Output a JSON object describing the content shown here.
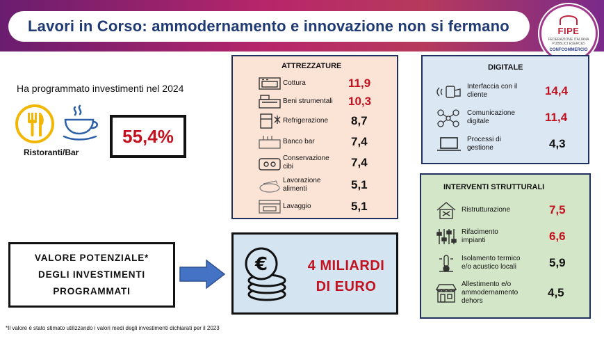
{
  "header": {
    "title": "Lavori in Corso: ammodernamento e innovazione non si fermano",
    "logo": {
      "name": "FIPE",
      "subtitle": "FEDERAZIONE ITALIANA PUBBLICI ESERCIZI",
      "parent": "CONFCOMMERCIO"
    }
  },
  "left": {
    "plan_text": "Ha programmato investimenti nel 2024",
    "segment": "Ristoranti/Bar",
    "percentage": "55,4%",
    "icons": [
      "fork-knife-icon",
      "coffee-cup-icon"
    ]
  },
  "attrezzature": {
    "title": "ATTREZZATURE",
    "items": [
      {
        "label": "Cottura",
        "value": "11,9",
        "icon": "oven-icon",
        "color": "#c3121f"
      },
      {
        "label": "Beni strumentali",
        "value": "10,3",
        "icon": "cash-register-icon",
        "color": "#c3121f"
      },
      {
        "label": "Refrigerazione",
        "value": "8,7",
        "icon": "fridge-icon",
        "color": "#111111"
      },
      {
        "label": "Banco bar",
        "value": "7,4",
        "icon": "bar-counter-icon",
        "color": "#111111"
      },
      {
        "label": "Conservazione cibi",
        "value": "7,4",
        "icon": "food-container-icon",
        "color": "#111111"
      },
      {
        "label": "Lavorazione alimenti",
        "value": "5,1",
        "icon": "mixer-icon",
        "color": "#111111"
      },
      {
        "label": "Lavaggio",
        "value": "5,1",
        "icon": "dishwasher-icon",
        "color": "#111111"
      }
    ]
  },
  "digitale": {
    "title": "DIGITALE",
    "items": [
      {
        "label": "Interfaccia con il cliente",
        "value": "14,4",
        "icon": "contactless-icon",
        "color": "#c3121f"
      },
      {
        "label": "Comunicazione digitale",
        "value": "11,4",
        "icon": "network-icon",
        "color": "#c3121f"
      },
      {
        "label": "Processi di gestione",
        "value": "4,3",
        "icon": "laptop-icon",
        "color": "#111111"
      }
    ]
  },
  "interventi": {
    "title": "INTERVENTI STRUTTURALI",
    "items": [
      {
        "label": "Ristrutturazione",
        "value": "7,5",
        "icon": "house-tools-icon",
        "color": "#c3121f"
      },
      {
        "label": "Rifacimento impianti",
        "value": "6,6",
        "icon": "sliders-icon",
        "color": "#c3121f"
      },
      {
        "label": "Isolamento termico e/o acustico locali",
        "value": "5,9",
        "icon": "thermometer-icon",
        "color": "#111111"
      },
      {
        "label": "Allestimento e/o ammodernamento dehors",
        "value": "4,5",
        "icon": "shop-awning-icon",
        "color": "#111111"
      }
    ]
  },
  "valore": {
    "line1": "VALORE POTENZIALE*",
    "line2": "DEGLI INVESTIMENTI",
    "line3": "PROGRAMMATI"
  },
  "euro": {
    "line1": "4 MILIARDI",
    "line2": "DI EURO",
    "icon": "euro-coins-icon"
  },
  "footnote": "*Il valore è stato stimato utilizzando i valori medi degli investimenti dichiarati per il 2023"
}
